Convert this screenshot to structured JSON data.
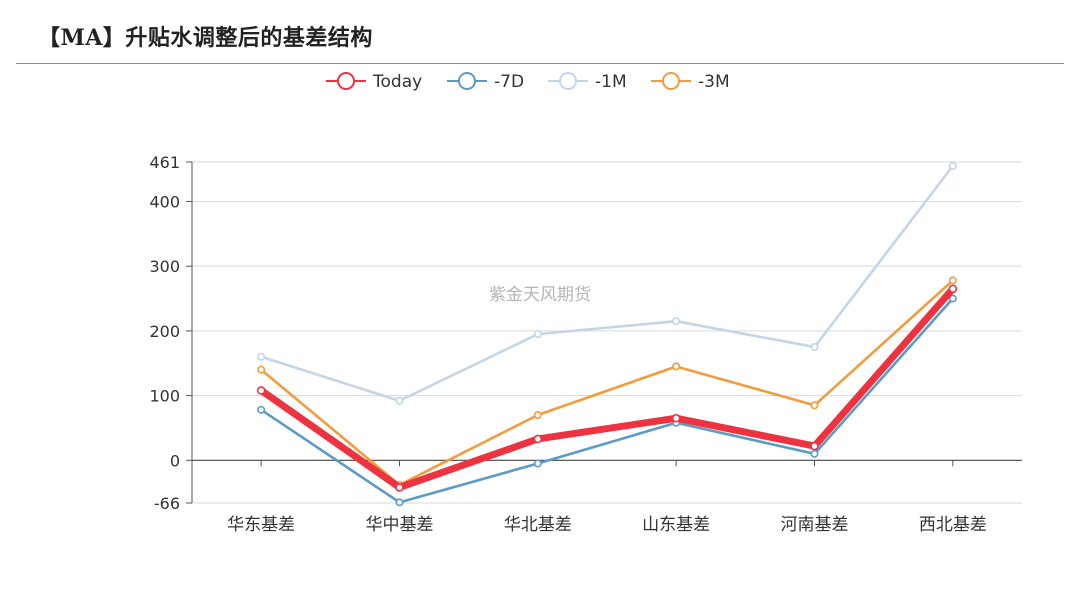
{
  "header": {
    "title": "【MA】升贴水调整后的基差结构"
  },
  "chart_data": {
    "type": "line",
    "watermark": "紫金天风期货",
    "categories": [
      "华东基差",
      "华中基差",
      "华北基差",
      "山东基差",
      "河南基差",
      "西北基差"
    ],
    "yticks": [
      461,
      400,
      300,
      200,
      100,
      0,
      -66
    ],
    "ylim": [
      -66,
      461
    ],
    "grid": true,
    "legend_position": "top-center",
    "series": [
      {
        "name": "-1M",
        "color": "#c4d5ea",
        "values": [
          160,
          92,
          195,
          215,
          175,
          455
        ]
      },
      {
        "name": "-3M",
        "color": "#f39b3d",
        "values": [
          140,
          -38,
          70,
          145,
          85,
          278
        ]
      },
      {
        "name": "-7D",
        "color": "#5b9bc8",
        "values": [
          78,
          -65,
          -5,
          58,
          10,
          250
        ]
      },
      {
        "name": "Today",
        "color": "#ee3340",
        "values": [
          108,
          -42,
          33,
          65,
          22,
          265
        ]
      }
    ],
    "legend_order": [
      "Today",
      "-7D",
      "-1M",
      "-3M"
    ]
  }
}
